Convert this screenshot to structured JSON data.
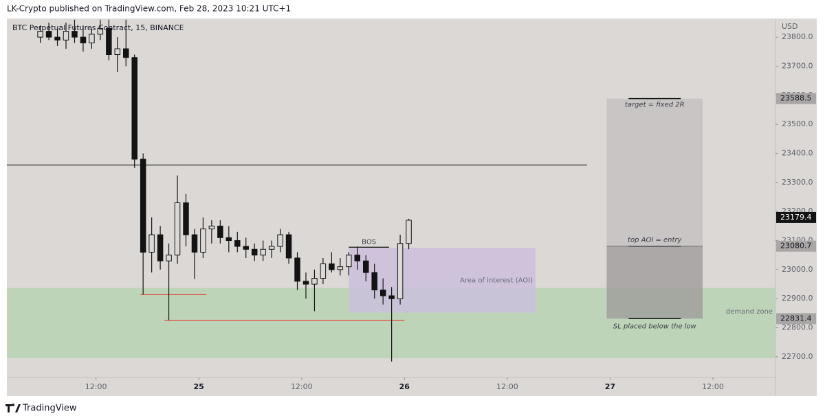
{
  "header": "LK-Crypto published on TradingView.com, Feb 28, 2023 10:21 UTC+1",
  "footer": "TradingView",
  "chart_data": {
    "type": "candlestick",
    "title": "BTC Perpetual Futures Contract, 15, BINANCE",
    "y_unit": "USD",
    "color": "#131313",
    "x": [
      5.5,
      6.5,
      7.5,
      8.5,
      9.5,
      10.5,
      11.5,
      12.5,
      13.5,
      14.5,
      15.5,
      16.5,
      17.5,
      18.5,
      19.5,
      20.5,
      21.5,
      22.5,
      23.5,
      24.5,
      25.5,
      26.5,
      27.5,
      28.5,
      29.5,
      30.5,
      31.5,
      32.5,
      33.5,
      34.5,
      35.5,
      36.5,
      37.5,
      38.5,
      39.5,
      40.5,
      41.5,
      42.5,
      43.5,
      44.5,
      45.5,
      46.5,
      47.5,
      48.5
    ],
    "open": [
      23800,
      23820,
      23800,
      23790,
      23820,
      23800,
      23780,
      23810,
      23830,
      23740,
      23760,
      23730,
      23380,
      23060,
      23120,
      23030,
      23050,
      23230,
      23120,
      23060,
      23140,
      23150,
      23110,
      23100,
      23080,
      23070,
      23050,
      23070,
      23080,
      23120,
      23040,
      22960,
      22950,
      22970,
      23020,
      23000,
      23010,
      23050,
      23030,
      22990,
      22930,
      22910,
      22900,
      23090
    ],
    "high": [
      23840,
      23850,
      23830,
      23850,
      23860,
      23840,
      23830,
      23860,
      23860,
      23800,
      23860,
      23740,
      23400,
      23180,
      23150,
      23090,
      23324,
      23260,
      23140,
      23180,
      23170,
      23170,
      23150,
      23130,
      23110,
      23090,
      23100,
      23100,
      23140,
      23130,
      23060,
      22990,
      23000,
      23040,
      23060,
      23040,
      23060,
      23080,
      23050,
      23020,
      22970,
      22940,
      23120,
      23175
    ],
    "low": [
      23780,
      23790,
      23770,
      23760,
      23780,
      23750,
      23760,
      23790,
      23720,
      23680,
      23700,
      23350,
      22915,
      22990,
      23000,
      22826,
      23020,
      23080,
      22968,
      23040,
      23090,
      23090,
      23060,
      23060,
      23040,
      23030,
      23030,
      23040,
      23060,
      23020,
      22930,
      22900,
      22857,
      22950,
      22990,
      22980,
      22980,
      23000,
      22960,
      22900,
      22880,
      22684,
      22880,
      23070
    ],
    "close": [
      23820,
      23800,
      23790,
      23820,
      23800,
      23780,
      23810,
      23830,
      23740,
      23760,
      23730,
      23380,
      23060,
      23120,
      23030,
      23050,
      23230,
      23120,
      23060,
      23140,
      23150,
      23110,
      23100,
      23080,
      23070,
      23050,
      23070,
      23080,
      23120,
      23040,
      22960,
      22950,
      22970,
      23020,
      23000,
      23010,
      23050,
      23030,
      22990,
      22930,
      22910,
      22900,
      23090,
      23170
    ],
    "xlim": [
      1.6,
      91.3
    ],
    "ylim": [
      22629,
      23864
    ],
    "xticks": [
      {
        "value": 12,
        "label": "12:00"
      },
      {
        "value": 24,
        "label": "25"
      },
      {
        "value": 36,
        "label": "12:00"
      },
      {
        "value": 48,
        "label": "26"
      },
      {
        "value": 60,
        "label": "12:00"
      },
      {
        "value": 72,
        "label": "27"
      },
      {
        "value": 84,
        "label": "12:00"
      }
    ],
    "yticks": [
      {
        "value": 22700,
        "label": "22700.0"
      },
      {
        "value": 22800,
        "label": "22800.0"
      },
      {
        "value": 22900,
        "label": "22900.0"
      },
      {
        "value": 23000,
        "label": "23000.0"
      },
      {
        "value": 23100,
        "label": "23100.0"
      },
      {
        "value": 23200,
        "label": "23200.0"
      },
      {
        "value": 23300,
        "label": "23300.0"
      },
      {
        "value": 23400,
        "label": "23400.0"
      },
      {
        "value": 23500,
        "label": "23500.0"
      },
      {
        "value": 23600,
        "label": "23600.0"
      },
      {
        "value": 23700,
        "label": "23700.0"
      },
      {
        "value": 23800,
        "label": "23800.0"
      }
    ],
    "zones": [
      {
        "name": "demand zone",
        "y": [
          22695,
          22937
        ],
        "color": "#b9d3b3"
      },
      {
        "name": "Area of interest (AOI)",
        "x": [
          41.5,
          63.3
        ],
        "y": [
          22852,
          23075
        ],
        "color": "#cbc0dc"
      }
    ],
    "lines": [
      {
        "x": [
          1.6,
          69.3
        ],
        "y": 23360,
        "color": "#131313"
      },
      {
        "x": [
          17.2,
          24.9
        ],
        "y": 22914,
        "color": "#e0392b"
      },
      {
        "x": [
          20,
          48
        ],
        "y": 22826,
        "color": "#e0392b"
      },
      {
        "x": [
          41.5,
          46.2
        ],
        "y": 23077,
        "color": "#131313",
        "label": "BOS"
      }
    ],
    "position": {
      "x": [
        71.6,
        82.8
      ],
      "target": 23588.5,
      "entry": 23080.7,
      "stop": 22831.4,
      "target_label": "target = fixed 2R",
      "entry_label": "top AOI = entry",
      "stop_label": "SL placed below the low"
    },
    "price_labels": [
      23588.5,
      23080.7,
      22831.4
    ],
    "last_price": 23179.4
  }
}
